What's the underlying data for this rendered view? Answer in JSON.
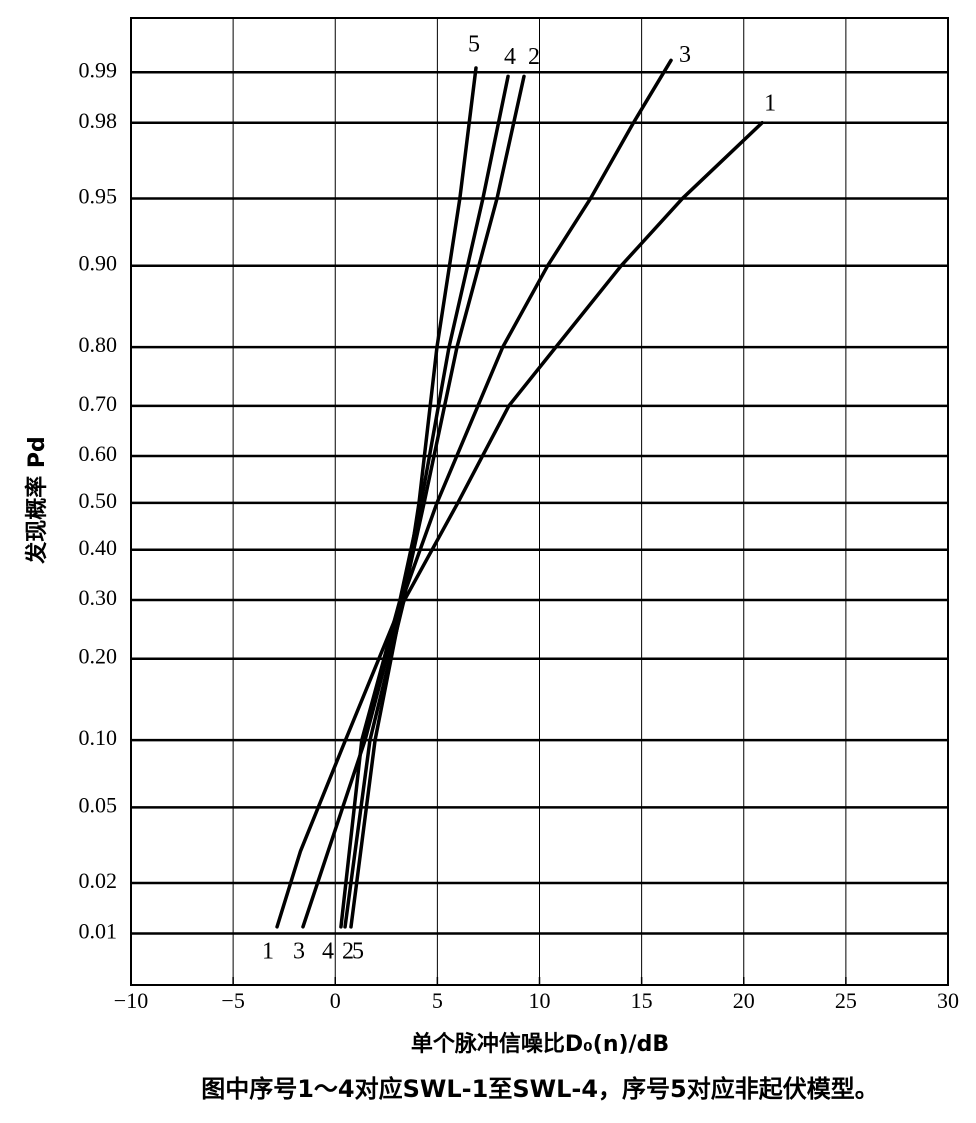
{
  "chart_data": {
    "type": "line",
    "x_label": "单个脉冲信噪比D₀(n)/dB",
    "y_label": "发现概率 Pd",
    "caption": "图中序号1～4对应SWL-1至SWL-4，序号5对应非起伏模型。",
    "yscale": "probit",
    "grid": true,
    "xlim": [
      -10,
      30
    ],
    "xticks": [
      {
        "value": -10,
        "label": "−10"
      },
      {
        "value": -5,
        "label": "−5"
      },
      0,
      5,
      10,
      15,
      20,
      25,
      30
    ],
    "ylim": [
      0.0046,
      0.9956
    ],
    "yticks": [
      0.01,
      0.02,
      0.05,
      {
        "value": 0.1,
        "label": "0.10"
      },
      {
        "value": 0.2,
        "label": "0.20"
      },
      {
        "value": 0.3,
        "label": "0.30"
      },
      {
        "value": 0.4,
        "label": "0.40"
      },
      {
        "value": 0.5,
        "label": "0.50"
      },
      {
        "value": 0.6,
        "label": "0.60"
      },
      {
        "value": 0.7,
        "label": "0.70"
      },
      {
        "value": 0.8,
        "label": "0.80"
      },
      {
        "value": 0.9,
        "label": "0.90"
      },
      0.95,
      0.98,
      0.99
    ],
    "series": [
      {
        "name": "1",
        "color": "#000000",
        "x": [
          -2.85,
          -1.7,
          0.5,
          3.1,
          6.0,
          8.5,
          10.8,
          14.0,
          17.0,
          20.9
        ],
        "values": [
          0.011,
          0.03,
          0.1,
          0.28,
          0.5,
          0.7,
          0.8,
          0.9,
          0.95,
          0.98
        ]
      },
      {
        "name": "2",
        "color": "#000000",
        "x": [
          0.77,
          1.95,
          3.3,
          4.35,
          5.96,
          7.92,
          9.24
        ],
        "values": [
          0.011,
          0.1,
          0.3,
          0.5,
          0.8,
          0.95,
          0.9894
        ]
      },
      {
        "name": "3",
        "color": "#000000",
        "x": [
          -1.58,
          1.46,
          3.27,
          4.98,
          8.2,
          10.4,
          12.5,
          14.6,
          16.44
        ],
        "values": [
          0.011,
          0.1,
          0.3,
          0.5,
          0.8,
          0.9,
          0.95,
          0.98,
          0.9916
        ]
      },
      {
        "name": "4",
        "color": "#000000",
        "x": [
          0.28,
          1.3,
          3.17,
          4.2,
          5.57,
          7.23,
          8.46
        ],
        "values": [
          0.011,
          0.1,
          0.3,
          0.5,
          0.8,
          0.95,
          0.9894
        ]
      },
      {
        "name": "5",
        "color": "#000000",
        "x": [
          0.48,
          1.7,
          3.37,
          4.1,
          4.98,
          6.1,
          6.89
        ],
        "values": [
          0.011,
          0.1,
          0.3,
          0.5,
          0.8,
          0.95,
          0.9906
        ]
      }
    ]
  }
}
